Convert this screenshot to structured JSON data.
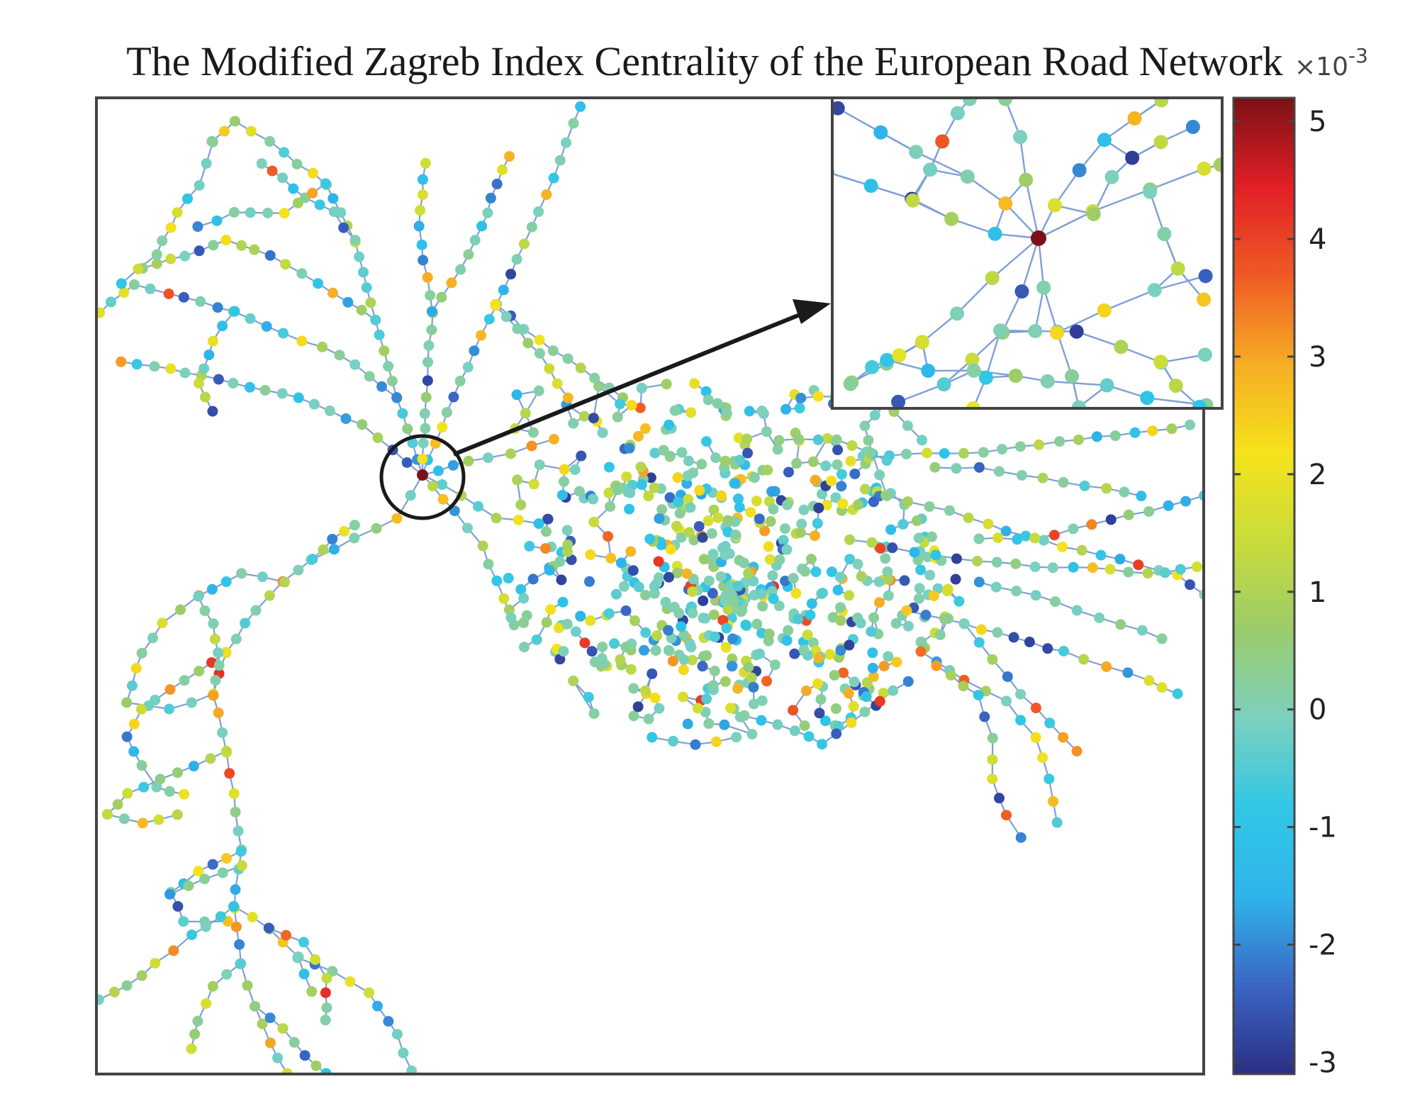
{
  "title": "The Modified Zagreb Index Centrality of the European Road Network",
  "colorbar": {
    "multiplier_base": "×10",
    "multiplier_exp": "-3",
    "ticks": [
      "5",
      "4",
      "3",
      "2",
      "1",
      "0",
      "-1",
      "-2",
      "-3"
    ],
    "range": [
      -3.1,
      5.2
    ],
    "colormap": [
      "#2b2f86",
      "#3a66c4",
      "#2fb4ea",
      "#31c7e6",
      "#7bd0bf",
      "#9acc6b",
      "#c8dc3a",
      "#f5e21c",
      "#f6ad24",
      "#ef5a24",
      "#e21f26",
      "#7b1114"
    ]
  },
  "highlight": {
    "node_color": "#7b1114",
    "node_value": 5.2
  },
  "edge_color": "#7f9fd6",
  "frame_color": "#444444",
  "arrow_color": "#1a1a1a"
}
